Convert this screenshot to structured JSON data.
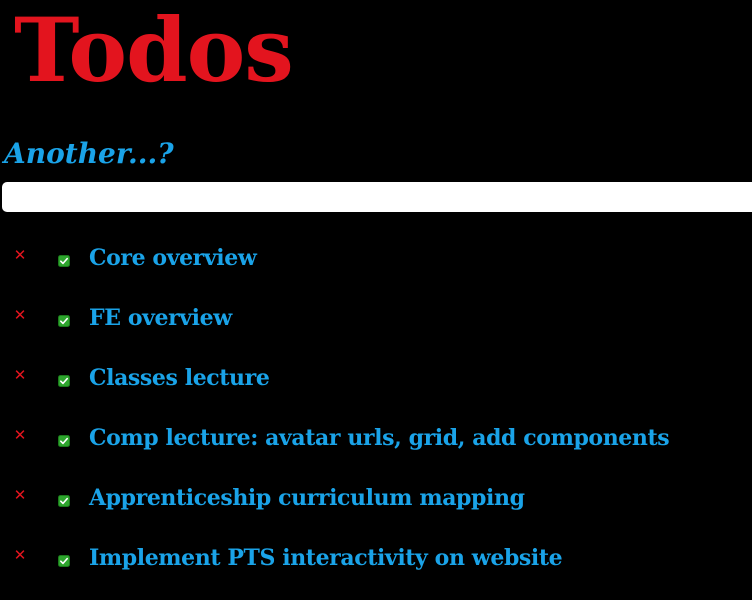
{
  "header": {
    "title": "Todos",
    "prompt": "Another...?"
  },
  "new_todo": {
    "value": "",
    "placeholder": ""
  },
  "todos": [
    {
      "text": "Core overview",
      "completed": true
    },
    {
      "text": "FE overview",
      "completed": true
    },
    {
      "text": "Classes lecture",
      "completed": true
    },
    {
      "text": "Comp lecture: avatar urls, grid, add components",
      "completed": true
    },
    {
      "text": "Apprenticeship curriculum mapping",
      "completed": true
    },
    {
      "text": "Implement PTS interactivity on website",
      "completed": true
    }
  ],
  "icons": {
    "delete": "close-icon",
    "check": "checkbox-checked-icon"
  },
  "colors": {
    "background": "#000000",
    "title": "#e3141e",
    "accent": "#1aa3e8",
    "delete": "#e3141e",
    "check": "#2ea52e"
  }
}
